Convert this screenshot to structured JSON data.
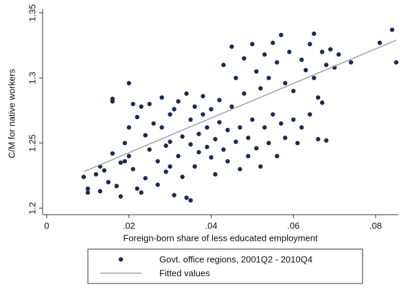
{
  "chart_data": {
    "type": "scatter",
    "xlabel": "Foreign-born share of less educated employment",
    "ylabel": "C/M for native workers",
    "xlim": [
      -0.001,
      0.0855
    ],
    "ylim": [
      1.195,
      1.353
    ],
    "xticks": [
      0,
      {
        "value": 0.02,
        "label": ".02"
      },
      {
        "value": 0.04,
        "label": ".04"
      },
      {
        "value": 0.06,
        "label": ".06"
      },
      {
        "value": 0.08,
        "label": ".08"
      }
    ],
    "yticks": [
      1.2,
      1.25,
      1.3,
      1.35
    ],
    "series": [
      {
        "name": "Govt. office regions, 2001Q2 - 2010Q4",
        "type": "scatter",
        "color": "#1c2b4e",
        "x": [
          0.009,
          0.01,
          0.01,
          0.012,
          0.013,
          0.013,
          0.014,
          0.015,
          0.016,
          0.016,
          0.016,
          0.017,
          0.018,
          0.018,
          0.019,
          0.019,
          0.02,
          0.02,
          0.02,
          0.021,
          0.021,
          0.022,
          0.022,
          0.023,
          0.023,
          0.024,
          0.024,
          0.025,
          0.025,
          0.026,
          0.027,
          0.027,
          0.028,
          0.028,
          0.029,
          0.029,
          0.03,
          0.03,
          0.03,
          0.031,
          0.031,
          0.032,
          0.032,
          0.033,
          0.033,
          0.034,
          0.034,
          0.035,
          0.035,
          0.035,
          0.036,
          0.036,
          0.037,
          0.037,
          0.038,
          0.038,
          0.039,
          0.039,
          0.04,
          0.04,
          0.041,
          0.041,
          0.042,
          0.042,
          0.043,
          0.043,
          0.044,
          0.044,
          0.045,
          0.045,
          0.046,
          0.046,
          0.047,
          0.047,
          0.048,
          0.048,
          0.049,
          0.049,
          0.05,
          0.05,
          0.051,
          0.051,
          0.052,
          0.052,
          0.053,
          0.053,
          0.054,
          0.054,
          0.055,
          0.055,
          0.056,
          0.056,
          0.057,
          0.057,
          0.058,
          0.058,
          0.059,
          0.06,
          0.06,
          0.061,
          0.062,
          0.062,
          0.063,
          0.064,
          0.064,
          0.065,
          0.065,
          0.066,
          0.066,
          0.067,
          0.067,
          0.068,
          0.068,
          0.069,
          0.07,
          0.071,
          0.074,
          0.081,
          0.084,
          0.085
        ],
        "values": [
          1.224,
          1.215,
          1.212,
          1.226,
          1.232,
          1.213,
          1.229,
          1.22,
          1.242,
          1.284,
          1.282,
          1.217,
          1.235,
          1.209,
          1.25,
          1.236,
          1.296,
          1.262,
          1.24,
          1.28,
          1.23,
          1.215,
          1.27,
          1.278,
          1.212,
          1.223,
          1.256,
          1.28,
          1.245,
          1.265,
          1.218,
          1.236,
          1.262,
          1.285,
          1.248,
          1.228,
          1.251,
          1.272,
          1.232,
          1.276,
          1.21,
          1.282,
          1.24,
          1.255,
          1.224,
          1.288,
          1.208,
          1.206,
          1.249,
          1.268,
          1.278,
          1.232,
          1.257,
          1.243,
          1.272,
          1.286,
          1.247,
          1.262,
          1.276,
          1.239,
          1.253,
          1.226,
          1.266,
          1.283,
          1.245,
          1.31,
          1.26,
          1.236,
          1.324,
          1.278,
          1.251,
          1.3,
          1.262,
          1.23,
          1.315,
          1.288,
          1.254,
          1.24,
          1.326,
          1.268,
          1.305,
          1.246,
          1.292,
          1.232,
          1.318,
          1.262,
          1.3,
          1.25,
          1.327,
          1.272,
          1.312,
          1.24,
          1.333,
          1.265,
          1.296,
          1.254,
          1.32,
          1.268,
          1.29,
          1.25,
          1.314,
          1.262,
          1.306,
          1.326,
          1.272,
          1.334,
          1.3,
          1.285,
          1.253,
          1.281,
          1.32,
          1.31,
          1.252,
          1.322,
          1.308,
          1.318,
          1.312,
          1.327,
          1.337,
          1.312
        ]
      },
      {
        "name": "Fitted values",
        "type": "line",
        "color": "#a0a0a0",
        "x": [
          0.009,
          0.085
        ],
        "values": [
          1.228,
          1.329
        ]
      }
    ]
  }
}
